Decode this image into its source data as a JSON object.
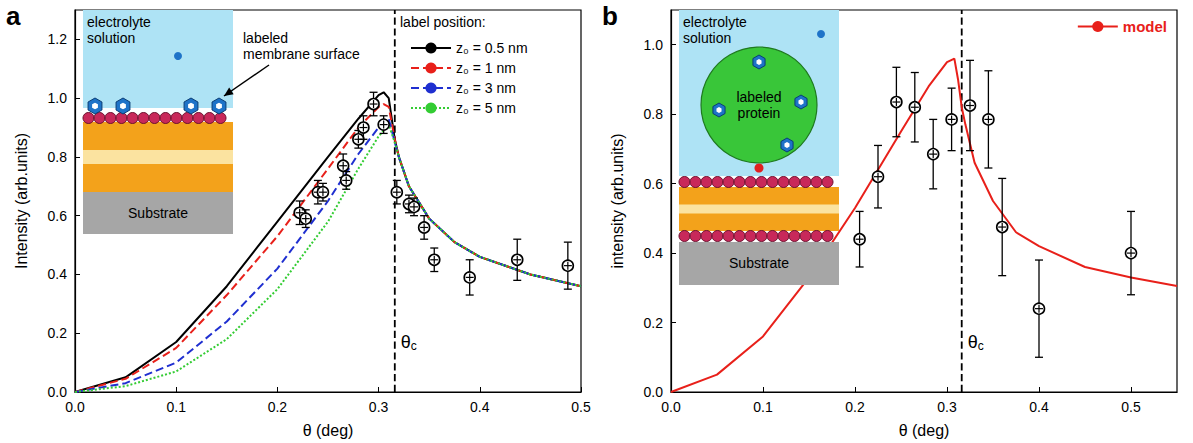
{
  "chart_data": [
    {
      "type": "line",
      "panel": "a",
      "x_label": "θ (deg)",
      "y_label": "Intensity (arb.units)",
      "xlim": [
        0,
        0.5
      ],
      "xticks": [
        {
          "value": 0,
          "label": "0.0"
        },
        0.1,
        0.2,
        0.3,
        0.4,
        0.5
      ],
      "ylim": [
        0,
        1.3
      ],
      "yticks": [
        {
          "value": 0,
          "label": "0.0"
        },
        0.2,
        0.4,
        0.6,
        0.8,
        {
          "value": 1,
          "label": "1.0"
        },
        1.2
      ],
      "grid": false,
      "legend": "upper right",
      "legend_title": "label position:",
      "vlines": [
        {
          "x": 0.316,
          "label": "θc",
          "line_style": "dashed"
        }
      ],
      "inset": {
        "solution": "electrolyte solution",
        "marker_label": "labeled membrane surface",
        "substrate": "Substrate"
      },
      "series": [
        {
          "name": "z₀ = 0.5 nm",
          "type": "line",
          "color": "#000000",
          "line_style": "solid",
          "x": [
            0,
            0.05,
            0.1,
            0.15,
            0.2,
            0.25,
            0.28,
            0.3,
            0.305,
            0.31,
            0.316,
            0.32,
            0.33,
            0.35,
            0.375,
            0.4,
            0.45,
            0.5
          ],
          "values": [
            0,
            0.05,
            0.17,
            0.36,
            0.58,
            0.8,
            0.93,
            1.01,
            1.02,
            1.0,
            0.86,
            0.8,
            0.7,
            0.59,
            0.51,
            0.46,
            0.4,
            0.36
          ]
        },
        {
          "name": "z₀ = 1 nm",
          "type": "line",
          "color": "#e8201a",
          "line_style": "dashed",
          "x": [
            0,
            0.05,
            0.1,
            0.15,
            0.2,
            0.25,
            0.28,
            0.3,
            0.305,
            0.31,
            0.316,
            0.32,
            0.33,
            0.35,
            0.375,
            0.4,
            0.45,
            0.5
          ],
          "values": [
            0,
            0.045,
            0.15,
            0.33,
            0.53,
            0.76,
            0.9,
            0.97,
            0.98,
            0.97,
            0.86,
            0.8,
            0.7,
            0.59,
            0.51,
            0.46,
            0.4,
            0.36
          ]
        },
        {
          "name": "z₀ = 3 nm",
          "type": "line",
          "color": "#1f2fd0",
          "line_style": "dashed",
          "x": [
            0,
            0.05,
            0.1,
            0.15,
            0.2,
            0.25,
            0.28,
            0.3,
            0.305,
            0.31,
            0.316,
            0.32,
            0.33,
            0.35,
            0.375,
            0.4,
            0.45,
            0.5
          ],
          "values": [
            0,
            0.03,
            0.1,
            0.24,
            0.42,
            0.65,
            0.81,
            0.9,
            0.915,
            0.93,
            0.85,
            0.8,
            0.7,
            0.59,
            0.51,
            0.46,
            0.4,
            0.36
          ]
        },
        {
          "name": "z₀ = 5 nm",
          "type": "line",
          "color": "#33cc33",
          "line_style": "dotted",
          "x": [
            0,
            0.05,
            0.1,
            0.15,
            0.2,
            0.25,
            0.28,
            0.3,
            0.305,
            0.31,
            0.316,
            0.32,
            0.33,
            0.35,
            0.375,
            0.4,
            0.45,
            0.5
          ],
          "values": [
            0,
            0.02,
            0.07,
            0.18,
            0.35,
            0.58,
            0.76,
            0.87,
            0.89,
            0.91,
            0.85,
            0.8,
            0.7,
            0.59,
            0.51,
            0.46,
            0.4,
            0.36
          ]
        },
        {
          "type": "scatter",
          "marker": "circle",
          "color": "#000000",
          "x": [
            0.222,
            0.228,
            0.24,
            0.245,
            0.265,
            0.268,
            0.28,
            0.285,
            0.295,
            0.305,
            0.318,
            0.33,
            0.335,
            0.345,
            0.355,
            0.39,
            0.437,
            0.487
          ],
          "values": [
            0.61,
            0.59,
            0.68,
            0.68,
            0.77,
            0.72,
            0.86,
            0.9,
            0.98,
            0.91,
            0.68,
            0.64,
            0.63,
            0.56,
            0.45,
            0.39,
            0.45,
            0.43
          ],
          "errors": [
            0.04,
            0.03,
            0.04,
            0.03,
            0.04,
            0.03,
            0.03,
            0.04,
            0.04,
            0.03,
            0.04,
            0.03,
            0.03,
            0.04,
            0.04,
            0.06,
            0.07,
            0.08
          ]
        }
      ]
    },
    {
      "type": "line",
      "panel": "b",
      "x_label": "θ (deg)",
      "y_label": "intensity (arb.units)",
      "xlim": [
        0,
        0.55
      ],
      "xticks": [
        {
          "value": 0,
          "label": "0.0"
        },
        0.1,
        0.2,
        0.3,
        0.4,
        0.5
      ],
      "ylim": [
        0,
        1.1
      ],
      "yticks": [
        {
          "value": 0,
          "label": "0.0"
        },
        0.2,
        0.4,
        0.6,
        0.8,
        {
          "value": 1,
          "label": "1.0"
        }
      ],
      "grid": false,
      "legend": "upper right",
      "vlines": [
        {
          "x": 0.316,
          "label": "θc",
          "line_style": "dashed"
        }
      ],
      "inset": {
        "solution": "electrolyte solution",
        "marker_label": "labeled protein",
        "substrate": "Substrate"
      },
      "series": [
        {
          "name": "model",
          "type": "line",
          "color": "#e8201a",
          "line_style": "solid",
          "x": [
            0,
            0.05,
            0.1,
            0.15,
            0.2,
            0.25,
            0.28,
            0.3,
            0.308,
            0.312,
            0.316,
            0.32,
            0.33,
            0.35,
            0.375,
            0.4,
            0.45,
            0.5,
            0.55
          ],
          "values": [
            0,
            0.05,
            0.16,
            0.33,
            0.53,
            0.75,
            0.88,
            0.95,
            0.96,
            0.9,
            0.82,
            0.77,
            0.66,
            0.55,
            0.46,
            0.42,
            0.36,
            0.33,
            0.305
          ]
        },
        {
          "type": "scatter",
          "marker": "circle",
          "color": "#000000",
          "x": [
            0.205,
            0.225,
            0.245,
            0.265,
            0.285,
            0.305,
            0.325,
            0.345,
            0.36,
            0.4,
            0.5
          ],
          "values": [
            0.44,
            0.62,
            0.835,
            0.82,
            0.685,
            0.785,
            0.825,
            0.785,
            0.475,
            0.24,
            0.4
          ],
          "errors": [
            0.08,
            0.09,
            0.1,
            0.1,
            0.1,
            0.09,
            0.13,
            0.14,
            0.14,
            0.14,
            0.12
          ]
        }
      ]
    }
  ]
}
